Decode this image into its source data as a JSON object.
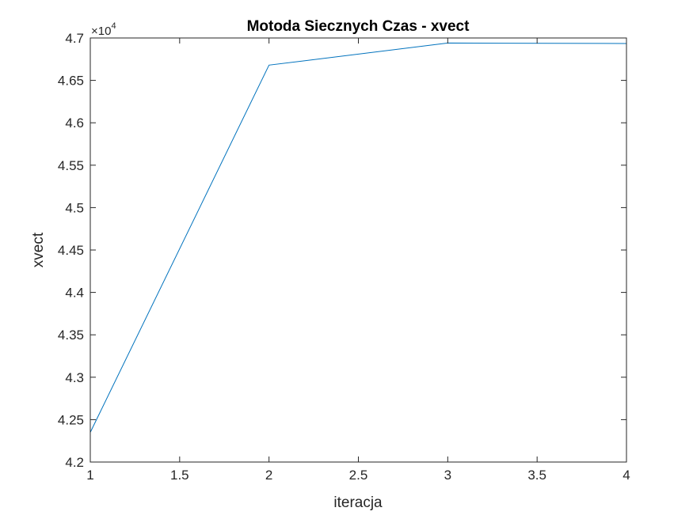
{
  "chart_data": {
    "type": "line",
    "title": "Motoda Siecznych Czas - xvect",
    "xlabel": "iteracja",
    "ylabel": "xvect",
    "x": [
      1,
      2,
      3,
      4
    ],
    "series": [
      {
        "values": [
          42350,
          46680,
          46940,
          46935
        ],
        "color": "#0072BD"
      }
    ],
    "xlim": [
      1,
      4
    ],
    "ylim": [
      42000,
      47000
    ],
    "x_ticks": [
      1,
      1.5,
      2,
      2.5,
      3,
      3.5,
      4
    ],
    "x_tick_labels": [
      "1",
      "1.5",
      "2",
      "2.5",
      "3",
      "3.5",
      "4"
    ],
    "y_ticks": [
      42000,
      42500,
      43000,
      43500,
      44000,
      44500,
      45000,
      45500,
      46000,
      46500,
      47000
    ],
    "y_tick_labels": [
      "4.2",
      "4.25",
      "4.3",
      "4.35",
      "4.4",
      "4.45",
      "4.5",
      "4.55",
      "4.6",
      "4.65",
      "4.7"
    ],
    "y_exponent": {
      "base": "×10",
      "power": "4"
    },
    "grid": false,
    "legend": false,
    "axis_color": "#262626"
  }
}
